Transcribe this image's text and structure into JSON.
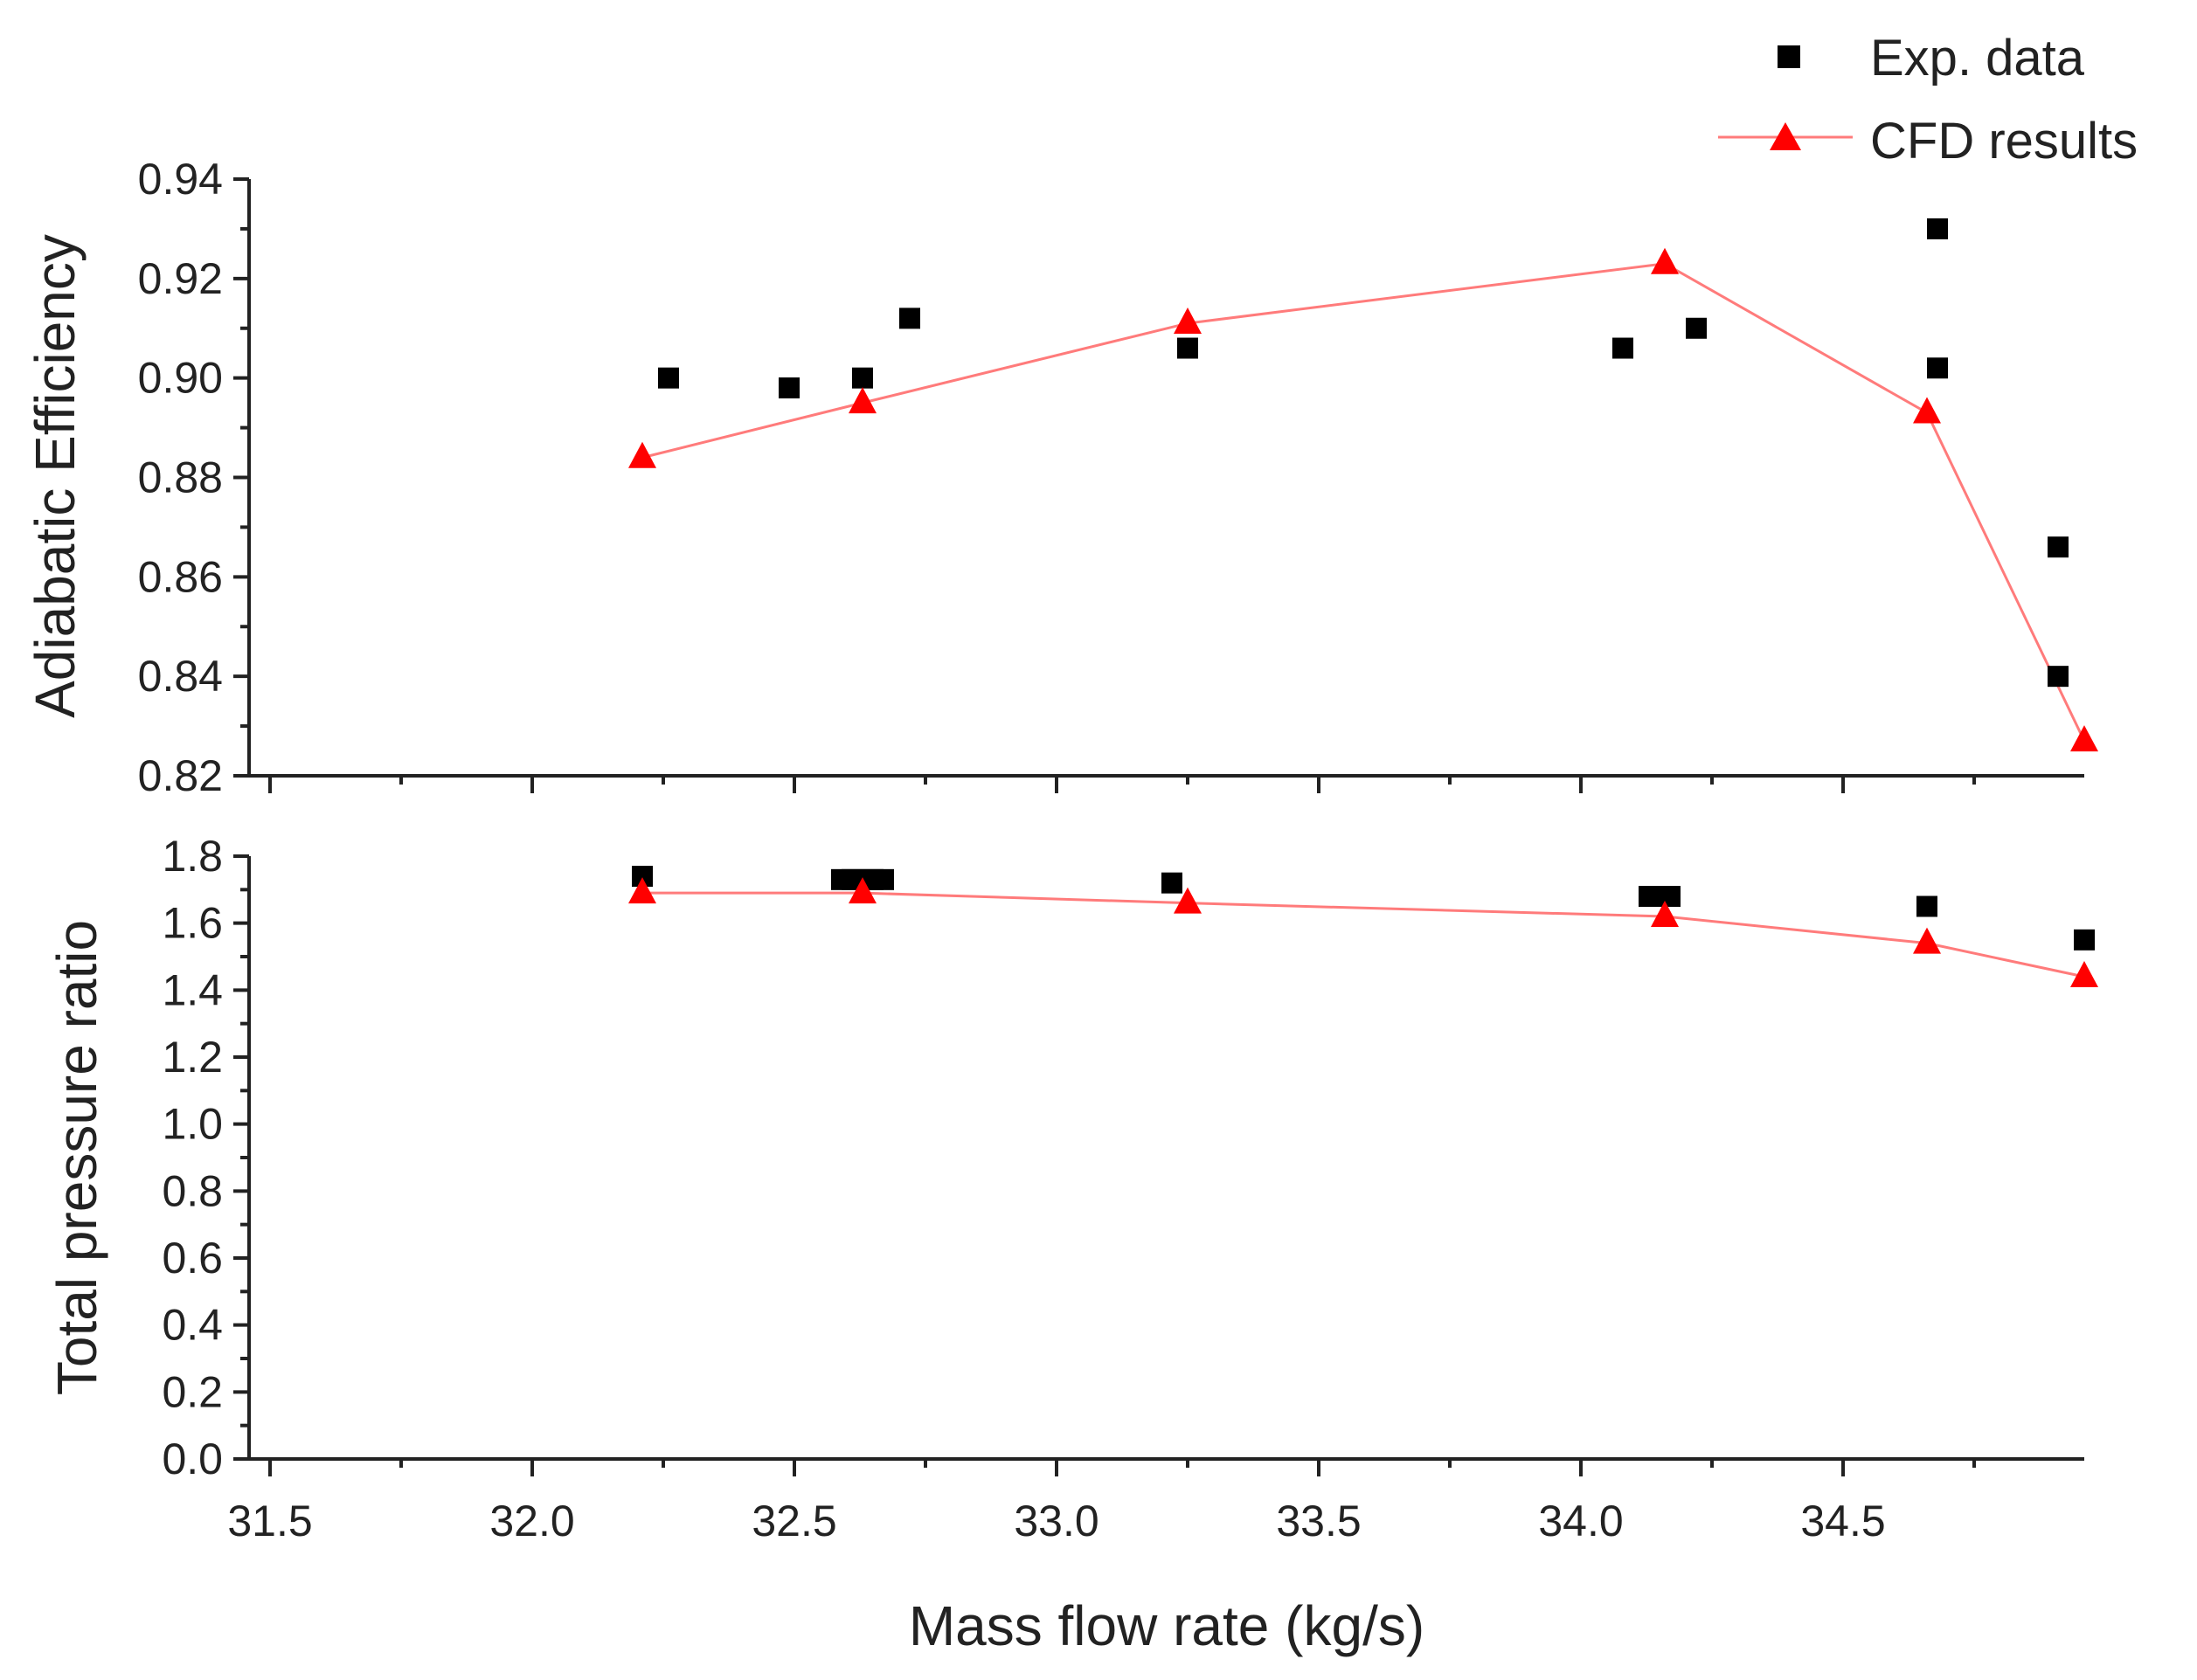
{
  "colors": {
    "exp": "#000000",
    "cfd": "#ff0000",
    "cfd_line": "#ff7b7b",
    "axis": "#222222"
  },
  "chart_data": [
    {
      "type": "scatter+line",
      "panel": "top",
      "ylabel": "Adiabatic Efficiency",
      "ylim": [
        0.82,
        0.94
      ],
      "yticks": [
        "0.82",
        "0.84",
        "0.86",
        "0.88",
        "0.90",
        "0.92",
        "0.94"
      ],
      "xlim": [
        31.46,
        34.96
      ],
      "series": [
        {
          "name": "Exp. data",
          "marker": "square",
          "x": [
            32.26,
            32.49,
            32.63,
            32.72,
            33.25,
            34.08,
            34.22,
            34.68,
            34.68,
            34.91,
            34.91
          ],
          "y": [
            0.9,
            0.898,
            0.9,
            0.912,
            0.906,
            0.906,
            0.91,
            0.93,
            0.902,
            0.866,
            0.84
          ]
        },
        {
          "name": "CFD results",
          "marker": "triangle",
          "line": true,
          "x": [
            32.21,
            32.63,
            33.25,
            34.16,
            34.66,
            34.96
          ],
          "y": [
            0.884,
            0.895,
            0.911,
            0.923,
            0.893,
            0.827
          ]
        }
      ]
    },
    {
      "type": "scatter+line",
      "panel": "bottom",
      "ylabel": "Total pressure ratio",
      "xlabel": "Mass flow rate (kg/s)",
      "ylim": [
        0.0,
        1.8
      ],
      "yticks": [
        "0.0",
        "0.2",
        "0.4",
        "0.6",
        "0.8",
        "1.0",
        "1.2",
        "1.4",
        "1.6",
        "1.8"
      ],
      "xlim": [
        31.46,
        34.96
      ],
      "xticks": [
        "31.5",
        "32.0",
        "32.5",
        "33.0",
        "33.5",
        "34.0",
        "34.5"
      ],
      "series": [
        {
          "name": "Exp. data",
          "marker": "square",
          "x": [
            32.21,
            32.59,
            32.61,
            32.63,
            32.65,
            32.67,
            33.22,
            34.13,
            34.15,
            34.17,
            34.66,
            34.96
          ],
          "y": [
            1.74,
            1.73,
            1.73,
            1.73,
            1.73,
            1.73,
            1.72,
            1.68,
            1.68,
            1.68,
            1.65,
            1.55
          ]
        },
        {
          "name": "CFD results",
          "marker": "triangle",
          "line": true,
          "x": [
            32.21,
            32.63,
            33.25,
            34.16,
            34.66,
            34.96
          ],
          "y": [
            1.69,
            1.69,
            1.66,
            1.62,
            1.54,
            1.44
          ]
        }
      ]
    }
  ],
  "legend": {
    "entries": [
      "Exp. data",
      "CFD results"
    ],
    "placement": "top-right"
  }
}
